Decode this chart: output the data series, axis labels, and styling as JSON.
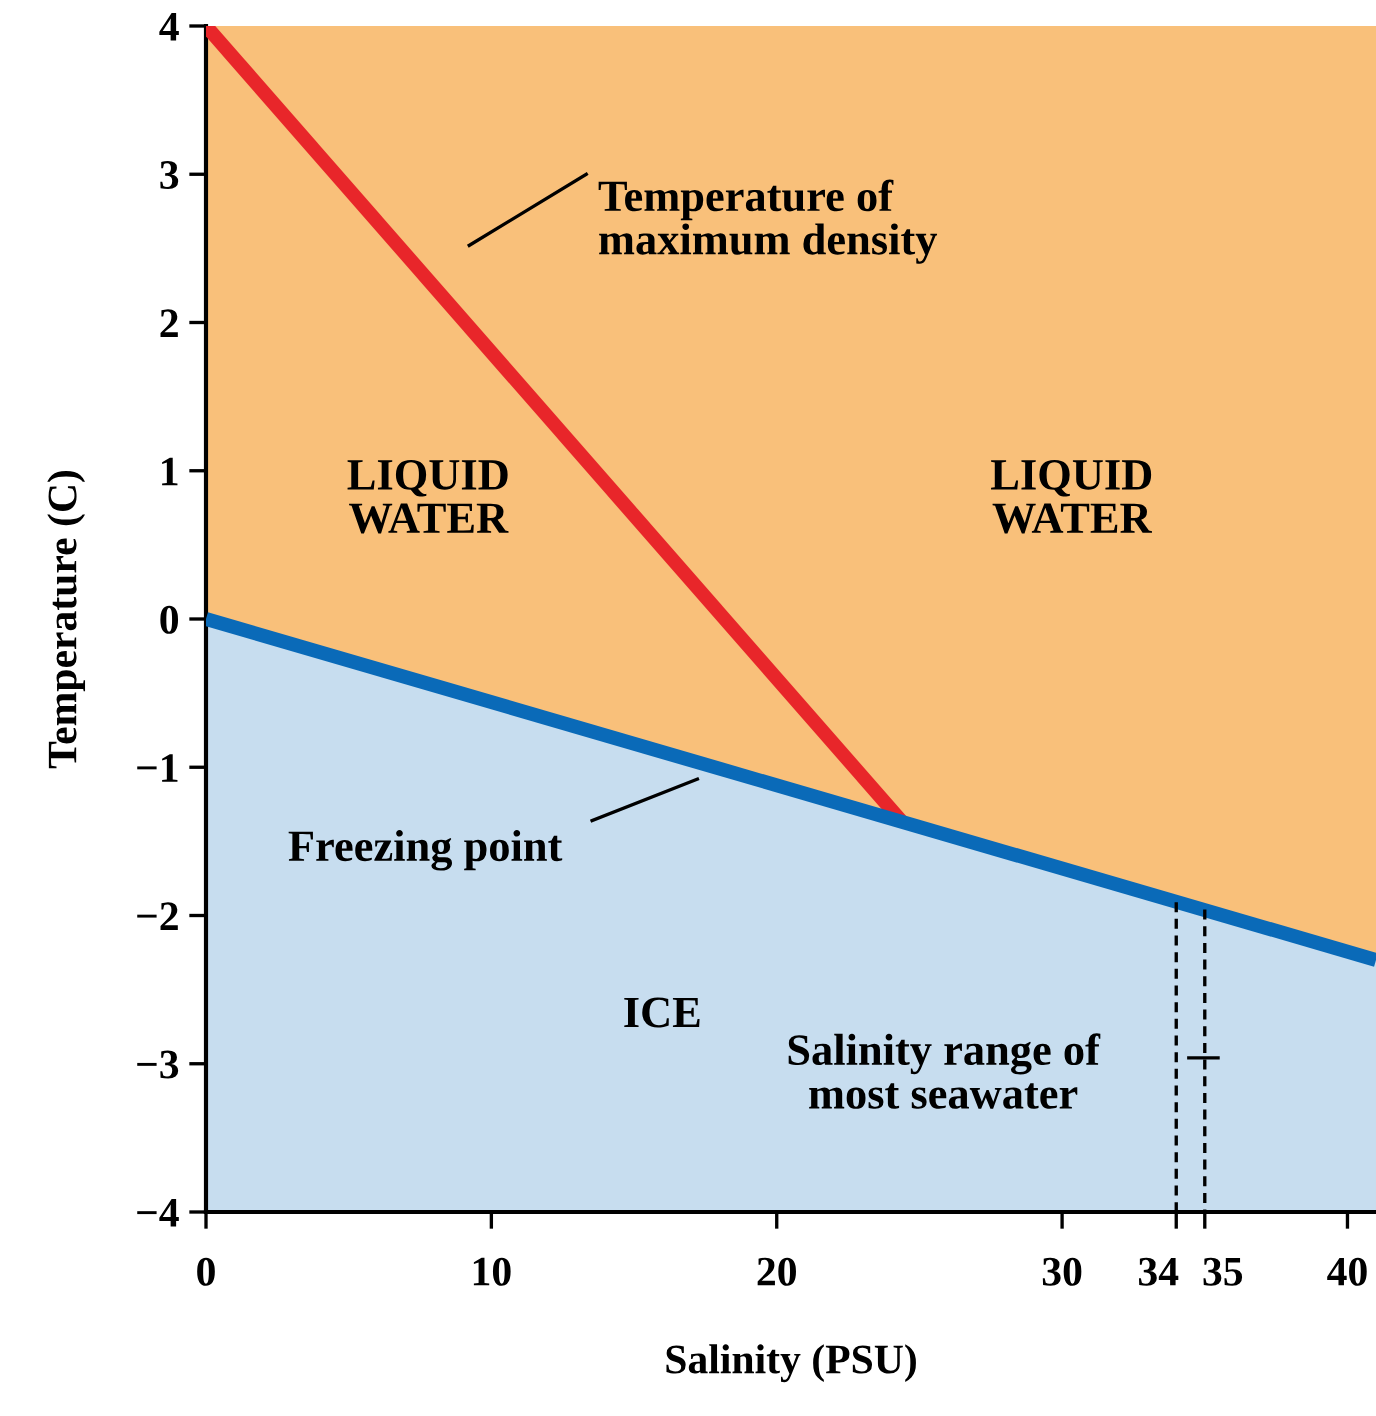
{
  "chart_data": {
    "type": "line",
    "xlabel": "Salinity (PSU)",
    "ylabel": "Temperature (C)",
    "xlim": [
      0,
      41
    ],
    "ylim": [
      -4,
      4
    ],
    "xticks": [
      0,
      10,
      20,
      30,
      34,
      35,
      40
    ],
    "yticks": [
      {
        "value": -4,
        "label": "−4"
      },
      {
        "value": -3,
        "label": "−3"
      },
      {
        "value": -2,
        "label": "−2"
      },
      {
        "value": -1,
        "label": "−1"
      },
      0,
      1,
      2,
      3,
      4
    ],
    "grid": false,
    "legend": false,
    "bands": [
      {
        "axis": "y",
        "from": -4,
        "to": 4,
        "color": "#f9c07a"
      }
    ],
    "series": [
      {
        "color": "#e8262a",
        "x": [
          0,
          24.4
        ],
        "values": [
          4,
          -1.37
        ]
      },
      {
        "color": "#0a6ab8",
        "x": [
          0,
          41
        ],
        "values": [
          0,
          -2.3
        ],
        "lower": [
          -4,
          -4
        ],
        "upper": [
          0,
          -2.3
        ]
      },
      {
        "color": "#000000",
        "line_style": "dashed",
        "x": [
          34,
          34
        ],
        "values": [
          -1.91,
          -4
        ]
      },
      {
        "color": "#000000",
        "line_style": "dashed",
        "x": [
          35,
          35
        ],
        "values": [
          -1.96,
          -4
        ]
      }
    ],
    "annotations": [
      "LIQUID\nWATER",
      "LIQUID\nWATER",
      "ICE",
      "Temperature of\nmaximum density",
      "Freezing point",
      "Salinity range of\nmost seawater"
    ]
  }
}
